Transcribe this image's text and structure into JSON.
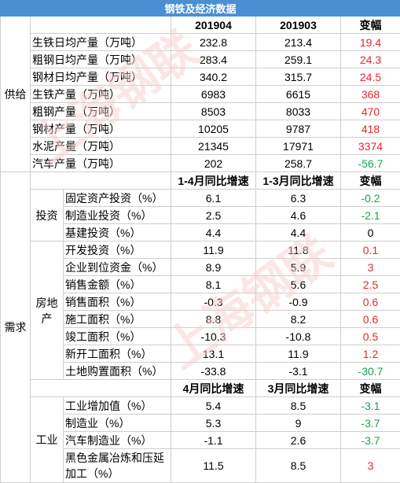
{
  "title": "钢铁及经济数据",
  "supply": {
    "category": "供给",
    "headers": [
      "201904",
      "201903",
      "变幅"
    ],
    "rows": [
      {
        "item": "生铁日均产量（万吨）",
        "a": "232.8",
        "b": "213.4",
        "c": "19.4",
        "color": "red"
      },
      {
        "item": "粗钢日均产量（万吨）",
        "a": "283.4",
        "b": "259.1",
        "c": "24.3",
        "color": "red"
      },
      {
        "item": "钢材日均产量（万吨）",
        "a": "340.2",
        "b": "315.7",
        "c": "24.5",
        "color": "red"
      },
      {
        "item": "生铁产量（万吨）",
        "a": "6983",
        "b": "6615",
        "c": "368",
        "color": "red"
      },
      {
        "item": "粗钢产量（万吨）",
        "a": "8503",
        "b": "8033",
        "c": "470",
        "color": "red"
      },
      {
        "item": "钢材产量（万吨）",
        "a": "10205",
        "b": "9787",
        "c": "418",
        "color": "red"
      },
      {
        "item": "水泥产量（万吨）",
        "a": "21345",
        "b": "17971",
        "c": "3374",
        "color": "red"
      },
      {
        "item": "汽车产量（万吨）",
        "a": "202",
        "b": "258.7",
        "c": "-56.7",
        "color": "green"
      }
    ]
  },
  "demand": {
    "category": "需求",
    "headers": [
      "1-4月同比增速",
      "1-3月同比增速",
      "变幅"
    ],
    "investment": {
      "label": "投资",
      "rows": [
        {
          "item": "固定资产投资（%）",
          "a": "6.1",
          "b": "6.3",
          "c": "-0.2",
          "color": "green"
        },
        {
          "item": "制造业投资（%）",
          "a": "2.5",
          "b": "4.6",
          "c": "-2.1",
          "color": "green"
        },
        {
          "item": "基建投资（%）",
          "a": "4.4",
          "b": "4.4",
          "c": "0",
          "color": "black"
        }
      ]
    },
    "real_estate": {
      "label": "房地产",
      "rows": [
        {
          "item": "开发投资（%）",
          "a": "11.9",
          "b": "11.8",
          "c": "0.1",
          "color": "red"
        },
        {
          "item": "企业到位资金（%）",
          "a": "8.9",
          "b": "5.9",
          "c": "3",
          "color": "red"
        },
        {
          "item": "销售金额（%）",
          "a": "8.1",
          "b": "5.6",
          "c": "2.5",
          "color": "red"
        },
        {
          "item": "销售面积（%）",
          "a": "-0.3",
          "b": "-0.9",
          "c": "0.6",
          "color": "red"
        },
        {
          "item": "施工面积（%）",
          "a": "8.8",
          "b": "8.2",
          "c": "0.6",
          "color": "red"
        },
        {
          "item": "竣工面积（%）",
          "a": "-10.3",
          "b": "-10.8",
          "c": "0.5",
          "color": "red"
        },
        {
          "item": "新开工面积（%）",
          "a": "13.1",
          "b": "11.9",
          "c": "1.2",
          "color": "red"
        },
        {
          "item": "土地购置面积（%）",
          "a": "-33.8",
          "b": "-3.1",
          "c": "-30.7",
          "color": "green"
        }
      ]
    },
    "industry_headers": [
      "4月同比增速",
      "3月同比增速",
      "变幅"
    ],
    "industry": {
      "label": "工业",
      "rows": [
        {
          "item": "工业增加值（%）",
          "a": "5.4",
          "b": "8.5",
          "c": "-3.1",
          "color": "green"
        },
        {
          "item": "制造业（%）",
          "a": "5.3",
          "b": "9",
          "c": "-3.7",
          "color": "green"
        },
        {
          "item": "汽车制造业（%）",
          "a": "-1.1",
          "b": "2.6",
          "c": "-3.7",
          "color": "green"
        },
        {
          "item": "黑色金属冶炼和压延加工（%）",
          "a": "11.5",
          "b": "8.5",
          "c": "3",
          "color": "red"
        }
      ]
    }
  },
  "watermark_text": "上海钢联",
  "colors": {
    "title_bg": "#4a8fd2",
    "positive": "#e8262b",
    "negative": "#13a64a"
  }
}
